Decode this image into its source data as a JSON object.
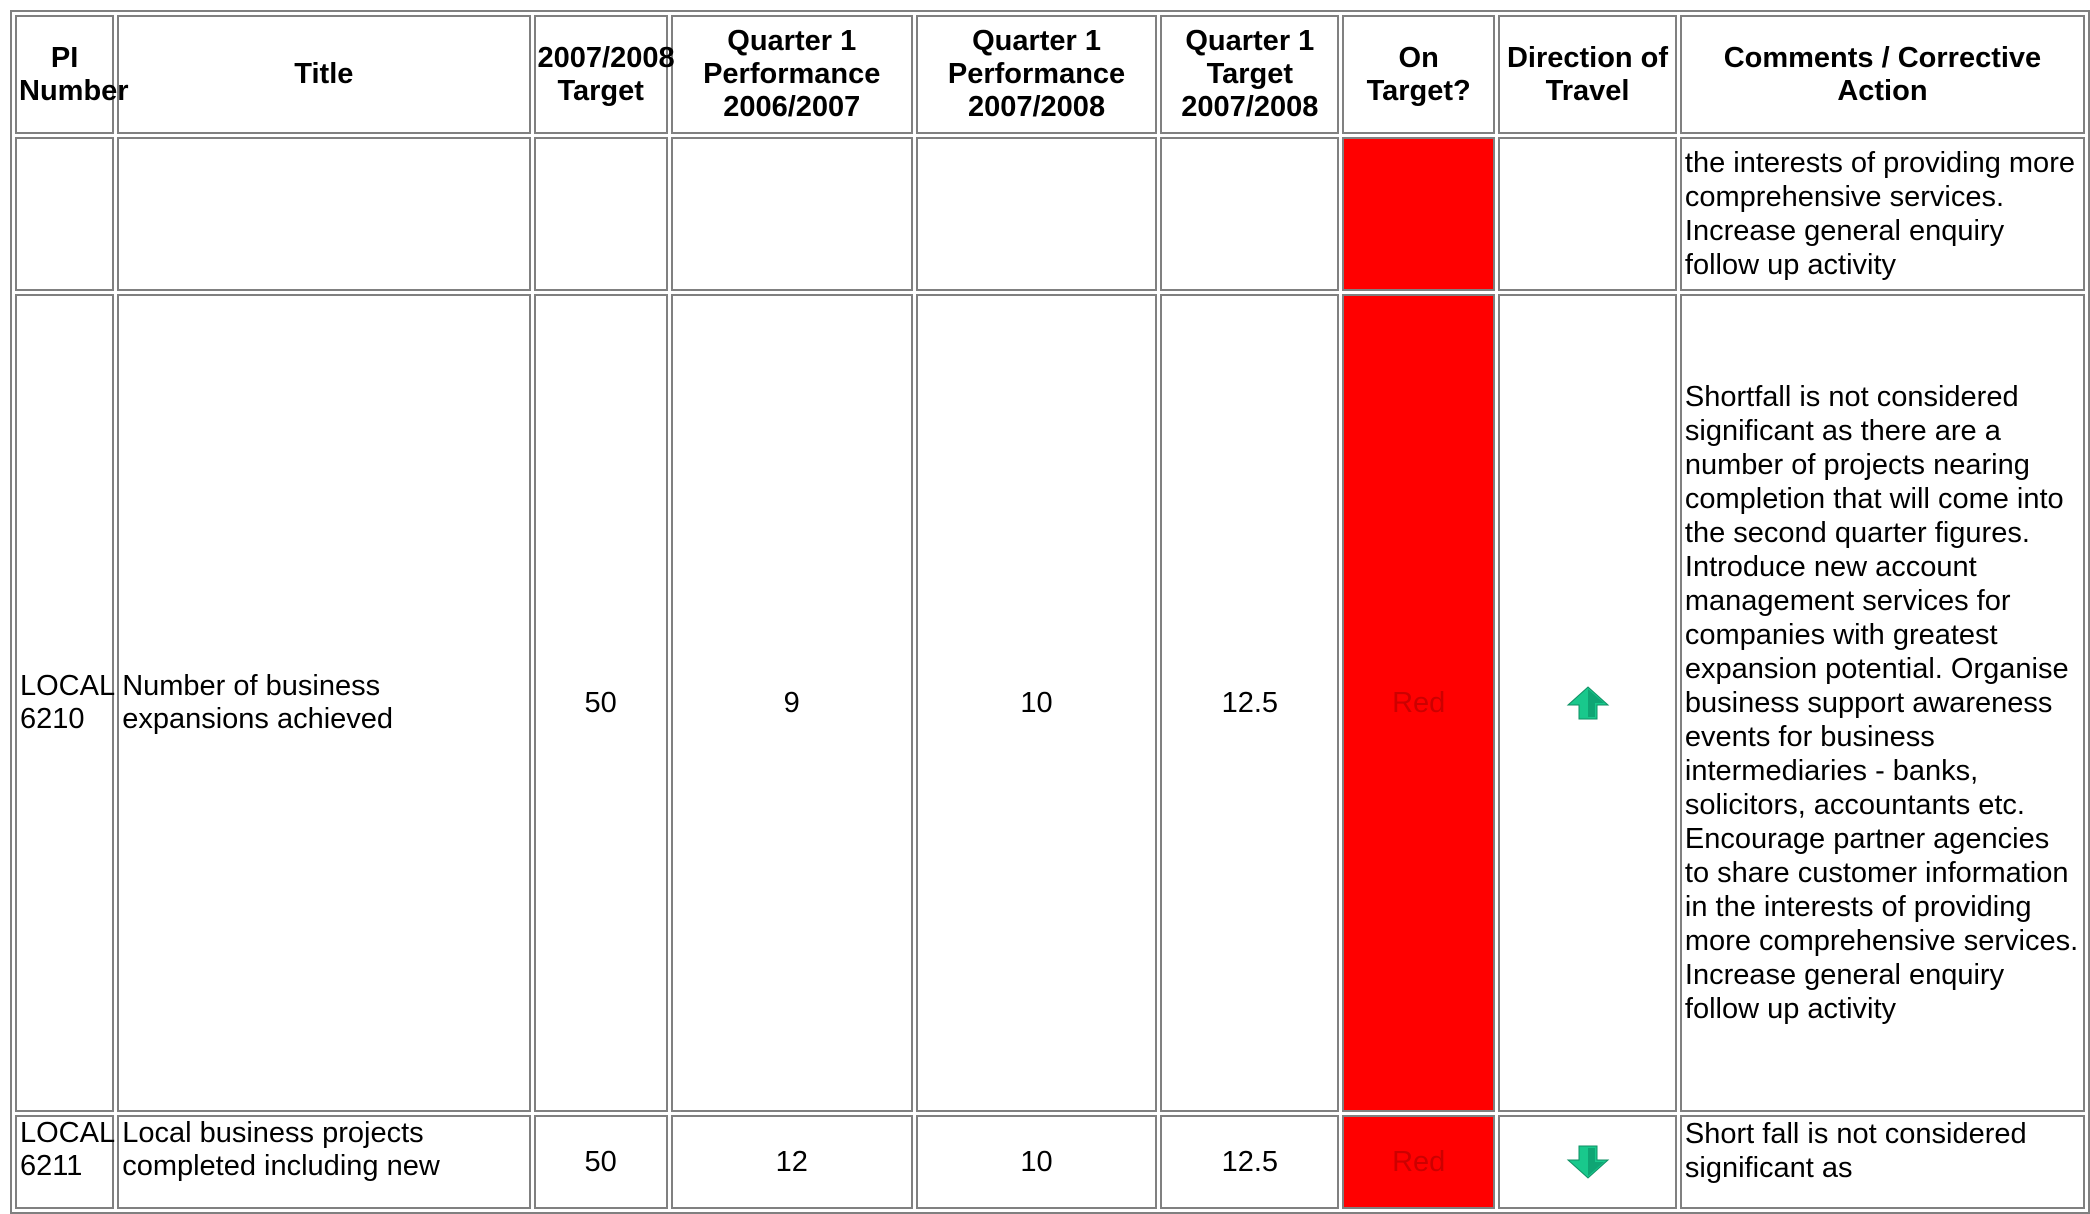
{
  "headers": {
    "pi_number": "PI Number",
    "title": "Title",
    "target_0708": "2007/2008 Target",
    "q1_perf_0607": "Quarter 1 Performance 2006/2007",
    "q1_perf_0708": "Quarter 1 Performance 2007/2008",
    "q1_target_0708": "Quarter 1 Target 2007/2008",
    "on_target": "On Target?",
    "direction": "Direction of Travel",
    "comments": "Comments / Corrective Action"
  },
  "rows": [
    {
      "pi_number": "",
      "title": "",
      "target": "",
      "q1_perf_0607": "",
      "q1_perf_0708": "",
      "q1_target": "",
      "on_target": "",
      "direction": "",
      "comment": "the interests of providing more comprehensive services. Increase general enquiry follow up activity"
    },
    {
      "pi_number": "LOCAL 6210",
      "title": "Number of business expansions achieved",
      "target": "50",
      "q1_perf_0607": "9",
      "q1_perf_0708": "10",
      "q1_target": "12.5",
      "on_target": "Red",
      "direction": "up-arrow-icon",
      "comment": "Shortfall is not considered significant as there are a number of projects nearing completion that will come into the second quarter figures. Introduce new account management services for companies with greatest expansion potential. Organise business support awareness events for business intermediaries - banks, solicitors, accountants etc. Encourage partner agencies to share customer information in the interests of providing more comprehensive services. Increase general enquiry follow up activity"
    },
    {
      "pi_number": "LOCAL 6211",
      "title": "Local business projects completed including new",
      "target": "50",
      "q1_perf_0607": "12",
      "q1_perf_0708": "10",
      "q1_target": "12.5",
      "on_target": "Red",
      "direction": "down-arrow-icon",
      "comment": "Short fall is not considered significant as"
    }
  ],
  "colors": {
    "red_status": "#ff0000",
    "red_text": "#cc0000",
    "arrow": "#19c88c",
    "border": "#808080"
  }
}
